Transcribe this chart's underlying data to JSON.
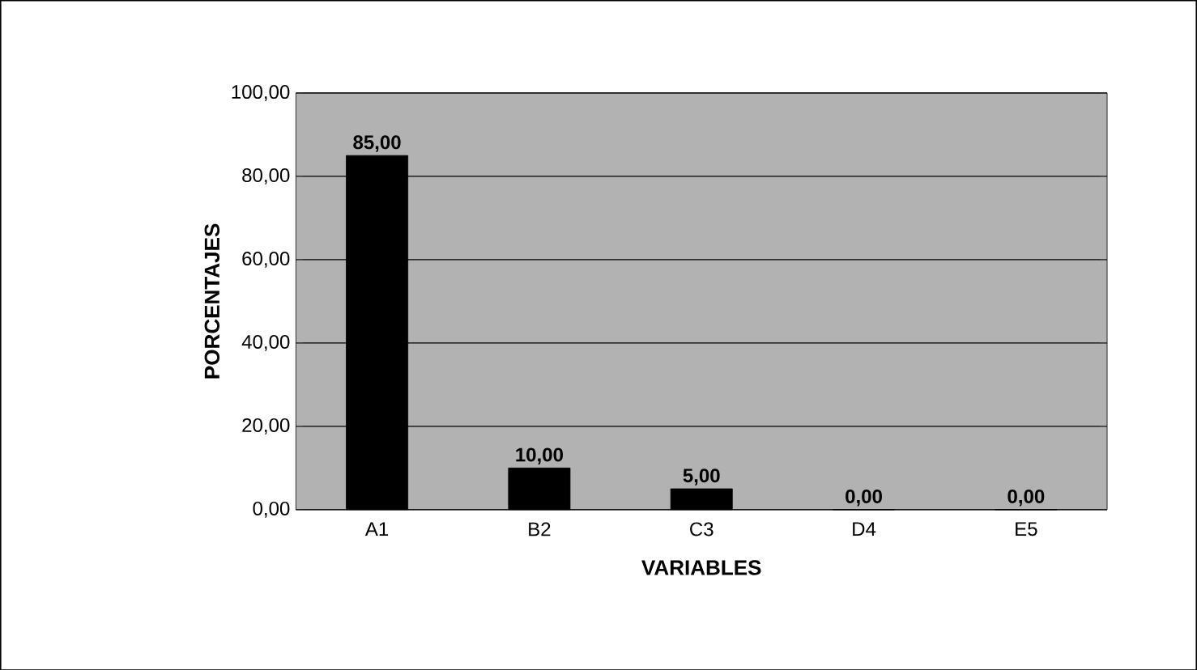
{
  "chart_data": {
    "type": "bar",
    "xlabel": "VARIABLES",
    "ylabel": "PORCENTAJES",
    "categories": [
      "A1",
      "B2",
      "C3",
      "D4",
      "E5"
    ],
    "values": [
      85,
      10,
      5,
      0,
      0
    ],
    "value_labels": [
      "85,00",
      "10,00",
      "5,00",
      "0,00",
      "0,00"
    ],
    "color": "#000000",
    "ylim": [
      0,
      100
    ],
    "yticks": [
      {
        "value": 0,
        "label": "0,00"
      },
      {
        "value": 20,
        "label": "20,00"
      },
      {
        "value": 40,
        "label": "40,00"
      },
      {
        "value": 60,
        "label": "60,00"
      },
      {
        "value": 80,
        "label": "80,00"
      },
      {
        "value": 100,
        "label": "100,00"
      }
    ],
    "grid": "y"
  }
}
